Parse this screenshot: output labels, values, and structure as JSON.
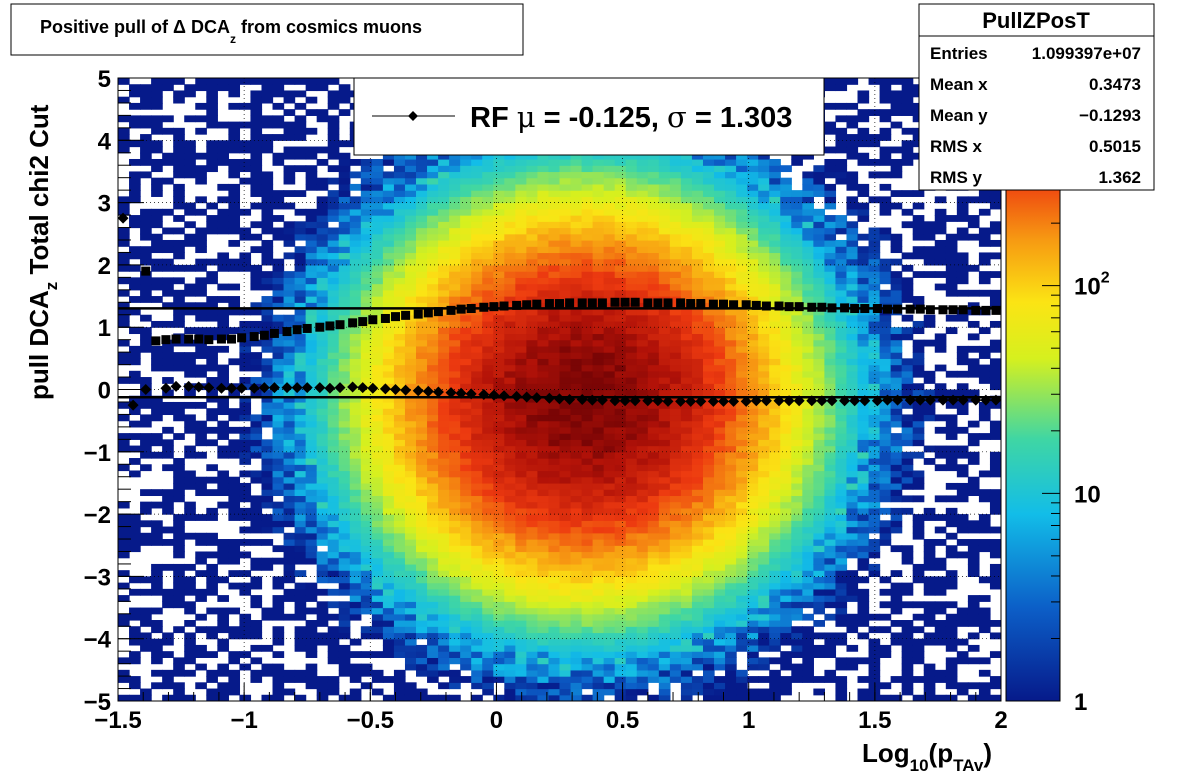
{
  "chart_data": {
    "type": "heatmap",
    "title": "Positive pull of Δ DCA",
    "title_sub": "z",
    "title_tail": " from cosmics muons",
    "xlabel": "Log",
    "xlabel_sub1": "10",
    "xlabel_mid": "(p",
    "xlabel_sub2": "TAv",
    "xlabel_tail": ")",
    "ylabel": "pull DCA",
    "ylabel_sub": "z",
    "ylabel_tail": "   Total chi2 Cut",
    "xlim": [
      -1.5,
      2
    ],
    "ylim": [
      -5,
      5
    ],
    "xticks": [
      "−1.5",
      "−1",
      "−0.5",
      "0",
      "0.5",
      "1",
      "1.5",
      "2"
    ],
    "xtick_values": [
      -1.5,
      -1,
      -0.5,
      0,
      0.5,
      1,
      1.5,
      2
    ],
    "yticks": [
      "−5",
      "−4",
      "−3",
      "−2",
      "−1",
      "0",
      "1",
      "2",
      "3",
      "4",
      "5"
    ],
    "ytick_values": [
      -5,
      -4,
      -3,
      -2,
      -1,
      0,
      1,
      2,
      3,
      4,
      5
    ],
    "grid": true,
    "colorbar": {
      "scale": "log",
      "range": [
        1,
        1000
      ],
      "labels": [
        {
          "base": "1",
          "exp": "",
          "value": 1
        },
        {
          "base": "10",
          "exp": "",
          "value": 10
        },
        {
          "base": "10",
          "exp": "2",
          "value": 100
        }
      ]
    },
    "stats": {
      "name": "PullZPosT",
      "rows": [
        {
          "label": "Entries",
          "value": "1.099397e+07"
        },
        {
          "label": "Mean x",
          "value": "0.3473"
        },
        {
          "label": "Mean y",
          "value": "−0.1293"
        },
        {
          "label": "RMS x",
          "value": "0.5015"
        },
        {
          "label": "RMS y",
          "value": "1.362"
        }
      ]
    },
    "legend": {
      "position": "top-center",
      "text_prefix": "RF ",
      "mu_symbol": "μ",
      "mid": " = -0.125, ",
      "sigma_symbol": "σ",
      "tail": " =   1.303"
    },
    "lines": [
      {
        "name": "mean-line",
        "y": -0.125
      },
      {
        "name": "sigma-line",
        "y": 1.303
      }
    ],
    "series": [
      {
        "marker": "diamond",
        "points": [
          [
            -1.48,
            2.75
          ],
          [
            -1.44,
            -0.25
          ],
          [
            -1.39,
            0.0
          ],
          [
            -1.31,
            0.02
          ],
          [
            -1.27,
            0.05
          ],
          [
            -1.22,
            0.05
          ],
          [
            -1.18,
            0.04
          ],
          [
            -1.14,
            0.03
          ],
          [
            -1.09,
            0.02
          ],
          [
            -1.05,
            0.02
          ],
          [
            -1.01,
            0.02
          ],
          [
            -0.96,
            0.02
          ],
          [
            -0.92,
            0.03
          ],
          [
            -0.88,
            0.03
          ],
          [
            -0.83,
            0.03
          ],
          [
            -0.79,
            0.03
          ],
          [
            -0.75,
            0.03
          ],
          [
            -0.7,
            0.03
          ],
          [
            -0.66,
            0.02
          ],
          [
            -0.62,
            0.03
          ],
          [
            -0.57,
            0.04
          ],
          [
            -0.53,
            0.03
          ],
          [
            -0.49,
            0.02
          ],
          [
            -0.44,
            0.01
          ],
          [
            -0.4,
            0.0
          ],
          [
            -0.36,
            -0.01
          ],
          [
            -0.31,
            -0.02
          ],
          [
            -0.27,
            -0.03
          ],
          [
            -0.23,
            -0.04
          ],
          [
            -0.18,
            -0.05
          ],
          [
            -0.14,
            -0.06
          ],
          [
            -0.1,
            -0.07
          ],
          [
            -0.05,
            -0.08
          ],
          [
            -0.01,
            -0.09
          ],
          [
            0.03,
            -0.1
          ],
          [
            0.08,
            -0.11
          ],
          [
            0.12,
            -0.12
          ],
          [
            0.16,
            -0.13
          ],
          [
            0.21,
            -0.14
          ],
          [
            0.25,
            -0.15
          ],
          [
            0.29,
            -0.16
          ],
          [
            0.34,
            -0.16
          ],
          [
            0.38,
            -0.17
          ],
          [
            0.42,
            -0.17
          ],
          [
            0.47,
            -0.18
          ],
          [
            0.51,
            -0.18
          ],
          [
            0.55,
            -0.18
          ],
          [
            0.6,
            -0.18
          ],
          [
            0.64,
            -0.18
          ],
          [
            0.68,
            -0.19
          ],
          [
            0.73,
            -0.19
          ],
          [
            0.77,
            -0.19
          ],
          [
            0.81,
            -0.19
          ],
          [
            0.86,
            -0.19
          ],
          [
            0.9,
            -0.19
          ],
          [
            0.94,
            -0.19
          ],
          [
            0.99,
            -0.19
          ],
          [
            1.03,
            -0.18
          ],
          [
            1.07,
            -0.18
          ],
          [
            1.12,
            -0.18
          ],
          [
            1.16,
            -0.18
          ],
          [
            1.2,
            -0.18
          ],
          [
            1.25,
            -0.18
          ],
          [
            1.29,
            -0.18
          ],
          [
            1.33,
            -0.18
          ],
          [
            1.38,
            -0.18
          ],
          [
            1.42,
            -0.18
          ],
          [
            1.46,
            -0.18
          ],
          [
            1.51,
            -0.18
          ],
          [
            1.55,
            -0.17
          ],
          [
            1.59,
            -0.17
          ],
          [
            1.64,
            -0.17
          ],
          [
            1.68,
            -0.17
          ],
          [
            1.72,
            -0.17
          ],
          [
            1.77,
            -0.17
          ],
          [
            1.81,
            -0.17
          ],
          [
            1.85,
            -0.17
          ],
          [
            1.9,
            -0.17
          ],
          [
            1.94,
            -0.17
          ],
          [
            1.98,
            -0.17
          ]
        ]
      },
      {
        "marker": "square",
        "points": [
          [
            -1.39,
            1.9
          ],
          [
            -1.35,
            0.78
          ],
          [
            -1.31,
            0.8
          ],
          [
            -1.27,
            0.81
          ],
          [
            -1.22,
            0.81
          ],
          [
            -1.18,
            0.81
          ],
          [
            -1.14,
            0.8
          ],
          [
            -1.09,
            0.81
          ],
          [
            -1.05,
            0.81
          ],
          [
            -1.01,
            0.83
          ],
          [
            -0.96,
            0.85
          ],
          [
            -0.92,
            0.87
          ],
          [
            -0.88,
            0.9
          ],
          [
            -0.83,
            0.93
          ],
          [
            -0.79,
            0.96
          ],
          [
            -0.75,
            0.98
          ],
          [
            -0.7,
            1.0
          ],
          [
            -0.66,
            1.02
          ],
          [
            -0.62,
            1.04
          ],
          [
            -0.57,
            1.07
          ],
          [
            -0.53,
            1.09
          ],
          [
            -0.49,
            1.12
          ],
          [
            -0.44,
            1.14
          ],
          [
            -0.4,
            1.17
          ],
          [
            -0.36,
            1.19
          ],
          [
            -0.31,
            1.21
          ],
          [
            -0.27,
            1.23
          ],
          [
            -0.23,
            1.25
          ],
          [
            -0.18,
            1.27
          ],
          [
            -0.14,
            1.29
          ],
          [
            -0.1,
            1.3
          ],
          [
            -0.05,
            1.32
          ],
          [
            -0.01,
            1.33
          ],
          [
            0.03,
            1.34
          ],
          [
            0.08,
            1.35
          ],
          [
            0.12,
            1.36
          ],
          [
            0.16,
            1.37
          ],
          [
            0.21,
            1.38
          ],
          [
            0.25,
            1.38
          ],
          [
            0.29,
            1.39
          ],
          [
            0.34,
            1.39
          ],
          [
            0.38,
            1.39
          ],
          [
            0.42,
            1.39
          ],
          [
            0.47,
            1.4
          ],
          [
            0.51,
            1.4
          ],
          [
            0.55,
            1.4
          ],
          [
            0.6,
            1.39
          ],
          [
            0.64,
            1.39
          ],
          [
            0.68,
            1.39
          ],
          [
            0.73,
            1.39
          ],
          [
            0.77,
            1.38
          ],
          [
            0.81,
            1.38
          ],
          [
            0.86,
            1.37
          ],
          [
            0.9,
            1.37
          ],
          [
            0.94,
            1.36
          ],
          [
            0.99,
            1.36
          ],
          [
            1.03,
            1.35
          ],
          [
            1.07,
            1.34
          ],
          [
            1.12,
            1.34
          ],
          [
            1.16,
            1.33
          ],
          [
            1.2,
            1.33
          ],
          [
            1.25,
            1.32
          ],
          [
            1.29,
            1.32
          ],
          [
            1.33,
            1.31
          ],
          [
            1.38,
            1.31
          ],
          [
            1.42,
            1.3
          ],
          [
            1.46,
            1.3
          ],
          [
            1.51,
            1.3
          ],
          [
            1.55,
            1.29
          ],
          [
            1.59,
            1.29
          ],
          [
            1.64,
            1.29
          ],
          [
            1.68,
            1.29
          ],
          [
            1.72,
            1.28
          ],
          [
            1.77,
            1.28
          ],
          [
            1.81,
            1.28
          ],
          [
            1.85,
            1.28
          ],
          [
            1.9,
            1.27
          ],
          [
            1.94,
            1.27
          ],
          [
            1.98,
            1.27
          ]
        ]
      }
    ]
  }
}
